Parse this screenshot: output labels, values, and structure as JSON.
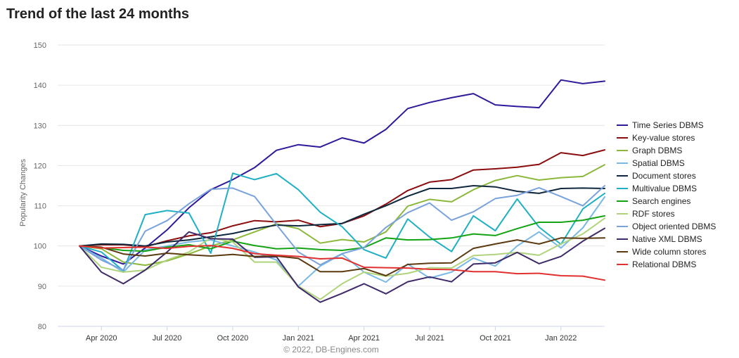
{
  "chart_data": {
    "type": "line",
    "title": "Trend of the last 24 months",
    "ylabel": "Popularity Changes",
    "ylim": [
      80,
      150
    ],
    "yticks": [
      80,
      90,
      100,
      110,
      120,
      130,
      140,
      150
    ],
    "xlim": [
      "2020-02",
      "2022-03"
    ],
    "xticks": [
      {
        "x": "2020-04",
        "label": "Apr 2020"
      },
      {
        "x": "2020-07",
        "label": "Jul 2020"
      },
      {
        "x": "2020-10",
        "label": "Oct 2020"
      },
      {
        "x": "2021-01",
        "label": "Jan 2021"
      },
      {
        "x": "2021-04",
        "label": "Apr 2021"
      },
      {
        "x": "2021-07",
        "label": "Jul 2021"
      },
      {
        "x": "2021-10",
        "label": "Oct 2021"
      },
      {
        "x": "2022-01",
        "label": "Jan 2022"
      }
    ],
    "x": [
      "2020-03",
      "2020-04",
      "2020-05",
      "2020-06",
      "2020-07",
      "2020-08",
      "2020-09",
      "2020-10",
      "2020-11",
      "2020-12",
      "2021-01",
      "2021-02",
      "2021-03",
      "2021-04",
      "2021-05",
      "2021-06",
      "2021-07",
      "2021-08",
      "2021-09",
      "2021-10",
      "2021-11",
      "2021-12",
      "2022-01",
      "2022-02",
      "2022-03"
    ],
    "legend_position": "right",
    "credit": "© 2022, DB-Engines.com",
    "series": [
      {
        "name": "Time Series DBMS",
        "color": "#2e1a9a",
        "values": [
          100,
          97.5,
          95.5,
          99.5,
          104,
          109.5,
          114,
          116.5,
          119.5,
          123.8,
          125.2,
          124.6,
          126.9,
          125.6,
          129,
          134.2,
          135.7,
          136.9,
          137.9,
          135.1,
          134.7,
          134.4,
          141.3,
          140.4,
          141
        ]
      },
      {
        "name": "Key-value stores",
        "color": "#8b0d0d",
        "values": [
          100,
          100.3,
          100.3,
          99.8,
          101.3,
          102.5,
          103.3,
          105,
          106.3,
          106,
          106.4,
          104.8,
          105.6,
          107.5,
          110.4,
          113.8,
          115.9,
          116.5,
          118.9,
          119.2,
          119.6,
          120.3,
          123.2,
          122.5,
          123.9
        ]
      },
      {
        "name": "Graph DBMS",
        "color": "#8cb83a",
        "values": [
          100,
          99.3,
          96,
          95.2,
          96.3,
          98,
          100,
          101.5,
          103.5,
          105.5,
          104.3,
          100.7,
          101.6,
          101,
          103.5,
          109.9,
          111.6,
          111,
          114,
          116.3,
          117.5,
          116.4,
          117,
          117.3,
          120.2
        ]
      },
      {
        "name": "Spatial DBMS",
        "color": "#7ab8e6",
        "values": [
          100,
          97,
          93.5,
          99,
          100,
          101,
          101.5,
          100,
          98.5,
          96.5,
          90,
          95,
          98,
          93.5,
          91,
          95.5,
          92,
          93.5,
          97,
          95,
          100,
          103.5,
          99.5,
          104.5,
          112.2
        ]
      },
      {
        "name": "Document stores",
        "color": "#10283e",
        "values": [
          100,
          100.5,
          100.4,
          100,
          101,
          101.5,
          102.3,
          103.1,
          104.3,
          105.2,
          105,
          105.3,
          105.6,
          107.9,
          110,
          112.4,
          114.3,
          114.3,
          115,
          114.7,
          113.6,
          113.1,
          114.3,
          114.4,
          114.3
        ]
      },
      {
        "name": "Multivalue DBMS",
        "color": "#1fb0c4",
        "values": [
          100,
          98.5,
          93.8,
          107.8,
          108.8,
          108.2,
          98.2,
          118.1,
          116.5,
          118,
          114,
          108.4,
          104.8,
          99.1,
          97,
          106.7,
          102.2,
          98.6,
          107.5,
          103.8,
          111.7,
          104.7,
          100.4,
          109.2,
          113.1
        ]
      },
      {
        "name": "Search engines",
        "color": "#14a314",
        "values": [
          100,
          99.6,
          98.9,
          98.7,
          99.7,
          100.3,
          99.3,
          101.2,
          100.1,
          99.3,
          99.5,
          99.1,
          98.9,
          99.6,
          102,
          101.5,
          101.6,
          102,
          103,
          102.6,
          104.3,
          105.9,
          105.9,
          106.4,
          107.5
        ]
      },
      {
        "name": "RDF stores",
        "color": "#b0d47c",
        "values": [
          100,
          94.7,
          93.5,
          94,
          96.5,
          98.5,
          102,
          101,
          96,
          96,
          90,
          86.7,
          90.6,
          93.5,
          92.5,
          93.2,
          94.6,
          94.5,
          97.6,
          97.9,
          98.4,
          97.7,
          100.5,
          103,
          106.9
        ]
      },
      {
        "name": "Object oriented DBMS",
        "color": "#7aa2dc",
        "values": [
          100,
          96.5,
          94,
          103.7,
          106.3,
          110.5,
          114.1,
          114.4,
          112.3,
          105.3,
          98.5,
          95.3,
          98.1,
          99.6,
          104.6,
          108.3,
          110.7,
          106.4,
          108.5,
          111.8,
          112.6,
          114.5,
          112.3,
          110,
          115
        ]
      },
      {
        "name": "Native XML DBMS",
        "color": "#3f2a6a",
        "values": [
          100,
          93.5,
          90.6,
          94,
          98.5,
          103.5,
          101.8,
          101.7,
          97.2,
          97.3,
          89.8,
          86,
          88.2,
          90.6,
          88.1,
          91.1,
          92.3,
          91.1,
          95.5,
          95.8,
          98.4,
          95.6,
          97.4,
          101.2,
          104.4
        ]
      },
      {
        "name": "Wide column stores",
        "color": "#5b3a10",
        "values": [
          100,
          99.7,
          98,
          97.5,
          98.2,
          97.8,
          97.5,
          97.9,
          97.4,
          97.5,
          96.9,
          93.6,
          93.6,
          94.4,
          92.6,
          95.4,
          95.7,
          95.8,
          99.4,
          100.5,
          101.5,
          100.5,
          102,
          101.9,
          102
        ]
      },
      {
        "name": "Relational DBMS",
        "color": "#e23030",
        "values": [
          100,
          99.5,
          99.6,
          99.7,
          99.4,
          99.9,
          100.1,
          99.4,
          98.1,
          97.7,
          97.4,
          96.8,
          97,
          94.7,
          94.6,
          94.5,
          94.2,
          94.1,
          93.6,
          93.6,
          93.1,
          93.2,
          92.6,
          92.5,
          91.5
        ]
      }
    ]
  }
}
